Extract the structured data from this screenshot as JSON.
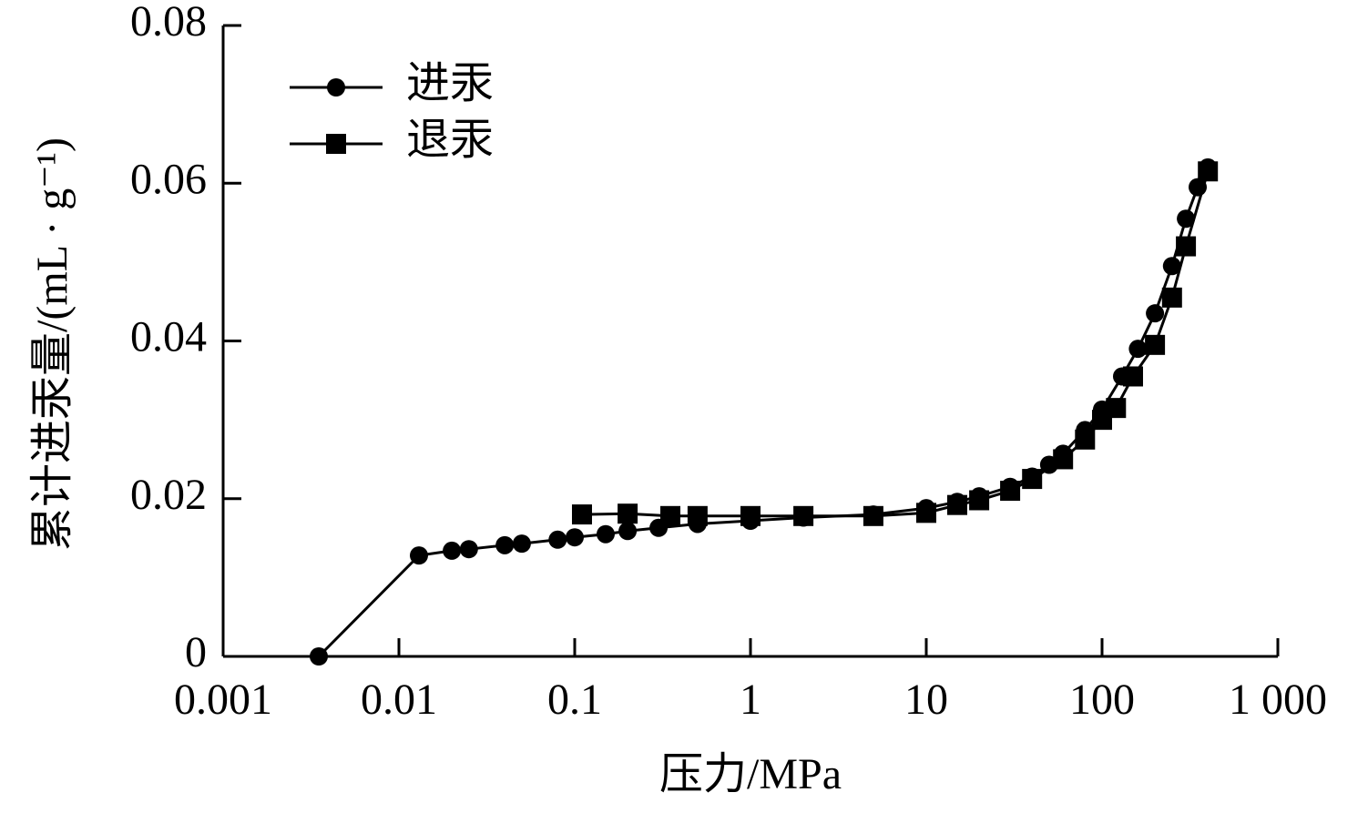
{
  "chart_data": {
    "type": "line",
    "xlabel": "压力/MPa",
    "ylabel": "累计进汞量/(mL · g⁻¹)",
    "xscale": "log",
    "xlim": [
      0.001,
      1000
    ],
    "xticks": [
      0.001,
      0.01,
      0.1,
      1,
      10,
      100,
      {
        "value": 1000,
        "label": "1 000"
      }
    ],
    "ylim": [
      0,
      0.08
    ],
    "yticks": [
      0,
      0.02,
      0.04,
      0.06,
      0.08
    ],
    "legend": "upper left",
    "series": [
      {
        "name": "进汞",
        "color": "#000000",
        "marker": "circle",
        "x": [
          0.0035,
          0.013,
          0.02,
          0.025,
          0.04,
          0.05,
          0.08,
          0.1,
          0.15,
          0.2,
          0.3,
          0.5,
          1,
          2,
          5,
          10,
          15,
          20,
          30,
          40,
          50,
          60,
          80,
          100,
          130,
          160,
          200,
          250,
          300,
          350,
          400
        ],
        "values": [
          0,
          0.0128,
          0.0134,
          0.0136,
          0.0141,
          0.0143,
          0.0148,
          0.0151,
          0.0155,
          0.0159,
          0.0163,
          0.0168,
          0.0172,
          0.0176,
          0.018,
          0.0188,
          0.0196,
          0.0203,
          0.0215,
          0.0228,
          0.0243,
          0.0257,
          0.0287,
          0.0313,
          0.0355,
          0.039,
          0.0435,
          0.0495,
          0.0555,
          0.0595,
          0.062
        ]
      },
      {
        "name": "退汞",
        "color": "#000000",
        "marker": "square",
        "x": [
          400,
          300,
          250,
          200,
          150,
          120,
          100,
          80,
          60,
          40,
          30,
          20,
          15,
          10,
          5,
          2,
          1,
          0.5,
          0.35,
          0.2,
          0.11
        ],
        "values": [
          0.0615,
          0.052,
          0.0455,
          0.0395,
          0.0355,
          0.0315,
          0.03,
          0.0275,
          0.025,
          0.0225,
          0.021,
          0.0198,
          0.0192,
          0.0182,
          0.0178,
          0.0178,
          0.0178,
          0.0178,
          0.0178,
          0.0181,
          0.018
        ]
      }
    ]
  }
}
